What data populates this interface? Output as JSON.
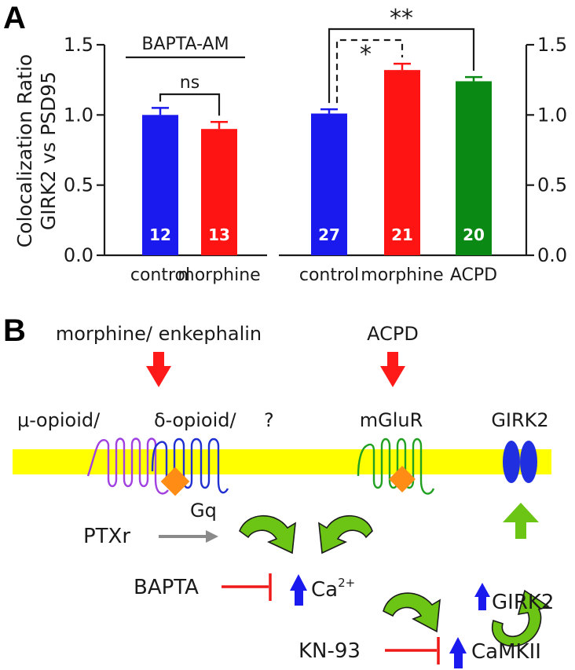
{
  "panel_a": {
    "label": "A",
    "ylabel_line1": "Colocalization  Ratio",
    "ylabel_line2": "GIRK2  vs  PSD95"
  },
  "chart_data": [
    {
      "type": "bar",
      "group_label": "BAPTA-AM",
      "categories": [
        "control",
        "morphine"
      ],
      "values": [
        1.0,
        0.9
      ],
      "errors": [
        0.05,
        0.05
      ],
      "n": [
        "12",
        "13"
      ],
      "colors": [
        "#1a1aee",
        "#ff1414"
      ],
      "ylim": [
        0,
        1.5
      ],
      "yticks": [
        "0.0",
        "0.5",
        "1.0",
        "1.5"
      ],
      "axis_side": "left",
      "significance": [
        {
          "from": 0,
          "to": 1,
          "label": "ns",
          "style": "solid"
        }
      ]
    },
    {
      "type": "bar",
      "group_label": "",
      "categories": [
        "control",
        "morphine",
        "ACPD"
      ],
      "values": [
        1.01,
        1.32,
        1.24
      ],
      "errors": [
        0.03,
        0.045,
        0.03
      ],
      "n": [
        "27",
        "21",
        "20"
      ],
      "colors": [
        "#1a1aee",
        "#ff1414",
        "#0a8a14"
      ],
      "ylim": [
        0,
        1.5
      ],
      "yticks": [
        "0.0",
        "0.5",
        "1.0",
        "1.5"
      ],
      "axis_side": "right",
      "significance": [
        {
          "from": 0,
          "to": 1,
          "label": "*",
          "style": "dashed"
        },
        {
          "from": 0,
          "to": 2,
          "label": "**",
          "style": "solid"
        }
      ]
    }
  ],
  "panel_b": {
    "label": "B",
    "agonist_left": "morphine/  enkephalin",
    "agonist_right": "ACPD",
    "receptor_mu": "μ-opioid/",
    "receptor_delta": "δ-opioid/",
    "receptor_unknown": "?",
    "receptor_mglur": "mGluR",
    "girk_channel": "GIRK2",
    "gq": "Gq",
    "ptxr": "PTXr",
    "bapta": "BAPTA",
    "calcium": "Ca",
    "calcium_sup": "2+",
    "kn93": "KN-93",
    "camkii": "CaMKII",
    "girk_up": "GIRK2",
    "colors": {
      "membrane": "#ffff00",
      "red_arrow": "#ff1a1a",
      "blue_arrow": "#1a1aee",
      "green_arrow": "#6cc414",
      "gray_arrow": "#8a8a8a",
      "inhibit": "#ee1a1a",
      "gq": "#ff8c14",
      "mu_receptor": "#a040e0",
      "delta_receptor": "#2030d0",
      "mglur_receptor": "#20a020",
      "girk_channel": "#2030e0"
    }
  }
}
